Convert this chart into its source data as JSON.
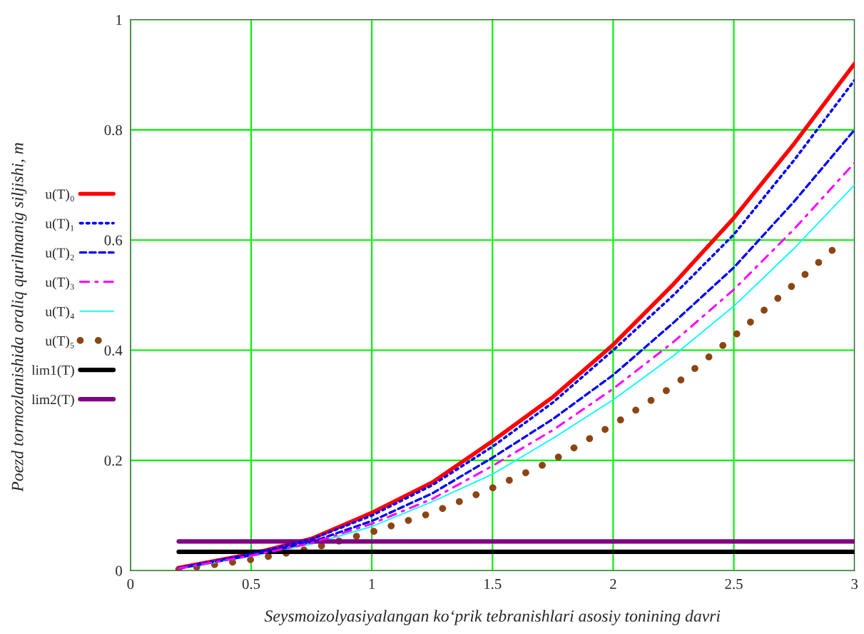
{
  "chart_data": {
    "type": "line",
    "xlabel": "Seysmoizolyasiyalangan ko‘prik tebranishlari asosiy tonining davri",
    "ylabel": "Poezd tormozlanishida oraliq qurilmanig siljishi, m",
    "x": [
      0.2,
      0.5,
      0.75,
      1,
      1.25,
      1.5,
      1.75,
      2,
      2.25,
      2.5,
      2.75,
      3
    ],
    "series": [
      {
        "name": "u(T)₀",
        "color": "#ff0000",
        "line_style": "solid",
        "values": [
          0.005,
          0.03,
          0.058,
          0.105,
          0.16,
          0.235,
          0.315,
          0.41,
          0.52,
          0.64,
          0.775,
          0.92
        ]
      },
      {
        "name": "u(T)₁",
        "color": "#0000ff",
        "line_style": "dotted",
        "values": [
          0.005,
          0.03,
          0.057,
          0.1,
          0.155,
          0.225,
          0.305,
          0.4,
          0.5,
          0.61,
          0.745,
          0.89
        ]
      },
      {
        "name": "u(T)₂",
        "color": "#0000ff",
        "line_style": "dashed",
        "values": [
          0.004,
          0.028,
          0.052,
          0.09,
          0.14,
          0.205,
          0.275,
          0.355,
          0.45,
          0.55,
          0.67,
          0.8
        ]
      },
      {
        "name": "u(T)₃",
        "color": "#ff00ff",
        "line_style": "dashdot",
        "values": [
          0.004,
          0.027,
          0.05,
          0.085,
          0.13,
          0.19,
          0.255,
          0.33,
          0.415,
          0.51,
          0.62,
          0.74
        ]
      },
      {
        "name": "u(T)₄",
        "color": "#00ffff",
        "line_style": "solid",
        "values": [
          0.003,
          0.026,
          0.048,
          0.08,
          0.125,
          0.175,
          0.24,
          0.31,
          0.39,
          0.48,
          0.585,
          0.7
        ]
      },
      {
        "name": "u(T)₅",
        "color": "#8b4513",
        "line_style": "dotted",
        "x": [
          0.2,
          0.5,
          0.75,
          1,
          1.25,
          1.5,
          1.75,
          2,
          2.25,
          2.5,
          2.75,
          2.93
        ],
        "values": [
          0.002,
          0.02,
          0.04,
          0.07,
          0.105,
          0.15,
          0.2,
          0.265,
          0.335,
          0.425,
          0.52,
          0.59
        ]
      },
      {
        "name": "lim1(T)",
        "color": "#000000",
        "line_style": "solid",
        "x": [
          0.2,
          3
        ],
        "values": [
          0.034,
          0.034
        ]
      },
      {
        "name": "lim2(T)",
        "color": "#800080",
        "line_style": "solid",
        "x": [
          0.2,
          3
        ],
        "values": [
          0.053,
          0.053
        ]
      }
    ],
    "xlim": [
      0,
      3
    ],
    "ylim": [
      0,
      1
    ],
    "xticks": [
      0,
      0.5,
      1,
      1.5,
      2,
      2.5,
      3
    ],
    "yticks": [
      0,
      0.2,
      0.4,
      0.6,
      0.8,
      1
    ],
    "grid": true,
    "legend": "left"
  }
}
